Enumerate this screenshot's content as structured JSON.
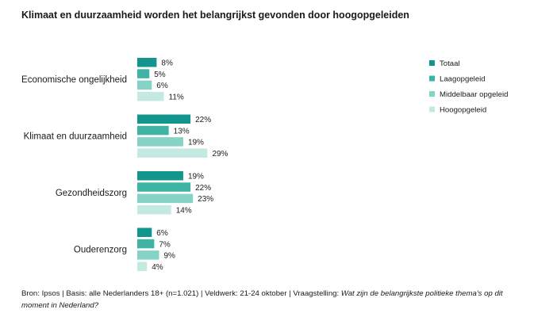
{
  "chart_data": {
    "type": "bar",
    "orientation": "horizontal",
    "title": "Klimaat en duurzaamheid worden het belangrijkst gevonden door hoogopgeleiden",
    "categories": [
      "Economische ongelijkheid",
      "Klimaat en duurzaamheid",
      "Gezondheidszorg",
      "Ouderenzorg"
    ],
    "series": [
      {
        "name": "Totaal",
        "color": "#12958c",
        "values": [
          8,
          22,
          19,
          6
        ]
      },
      {
        "name": "Laagopgeleid",
        "color": "#3fb3a4",
        "values": [
          5,
          13,
          22,
          7
        ]
      },
      {
        "name": "Middelbaar opgeleid",
        "color": "#85d3c6",
        "values": [
          6,
          19,
          23,
          9
        ]
      },
      {
        "name": "Hoogopgeleid",
        "color": "#c4e9e1",
        "values": [
          11,
          29,
          14,
          4
        ]
      }
    ],
    "value_suffix": "%",
    "xlim": [
      0,
      30
    ],
    "legend": "right",
    "grid": false
  },
  "footnote": {
    "text": "Bron: Ipsos | Basis: alle Nederlanders 18+ (n=1.021) | Veldwerk: 21-24 oktober | Vraagstelling: ",
    "question": "Wat zijn de belangrijkste politieke thema's op dit moment in Nederland?"
  }
}
